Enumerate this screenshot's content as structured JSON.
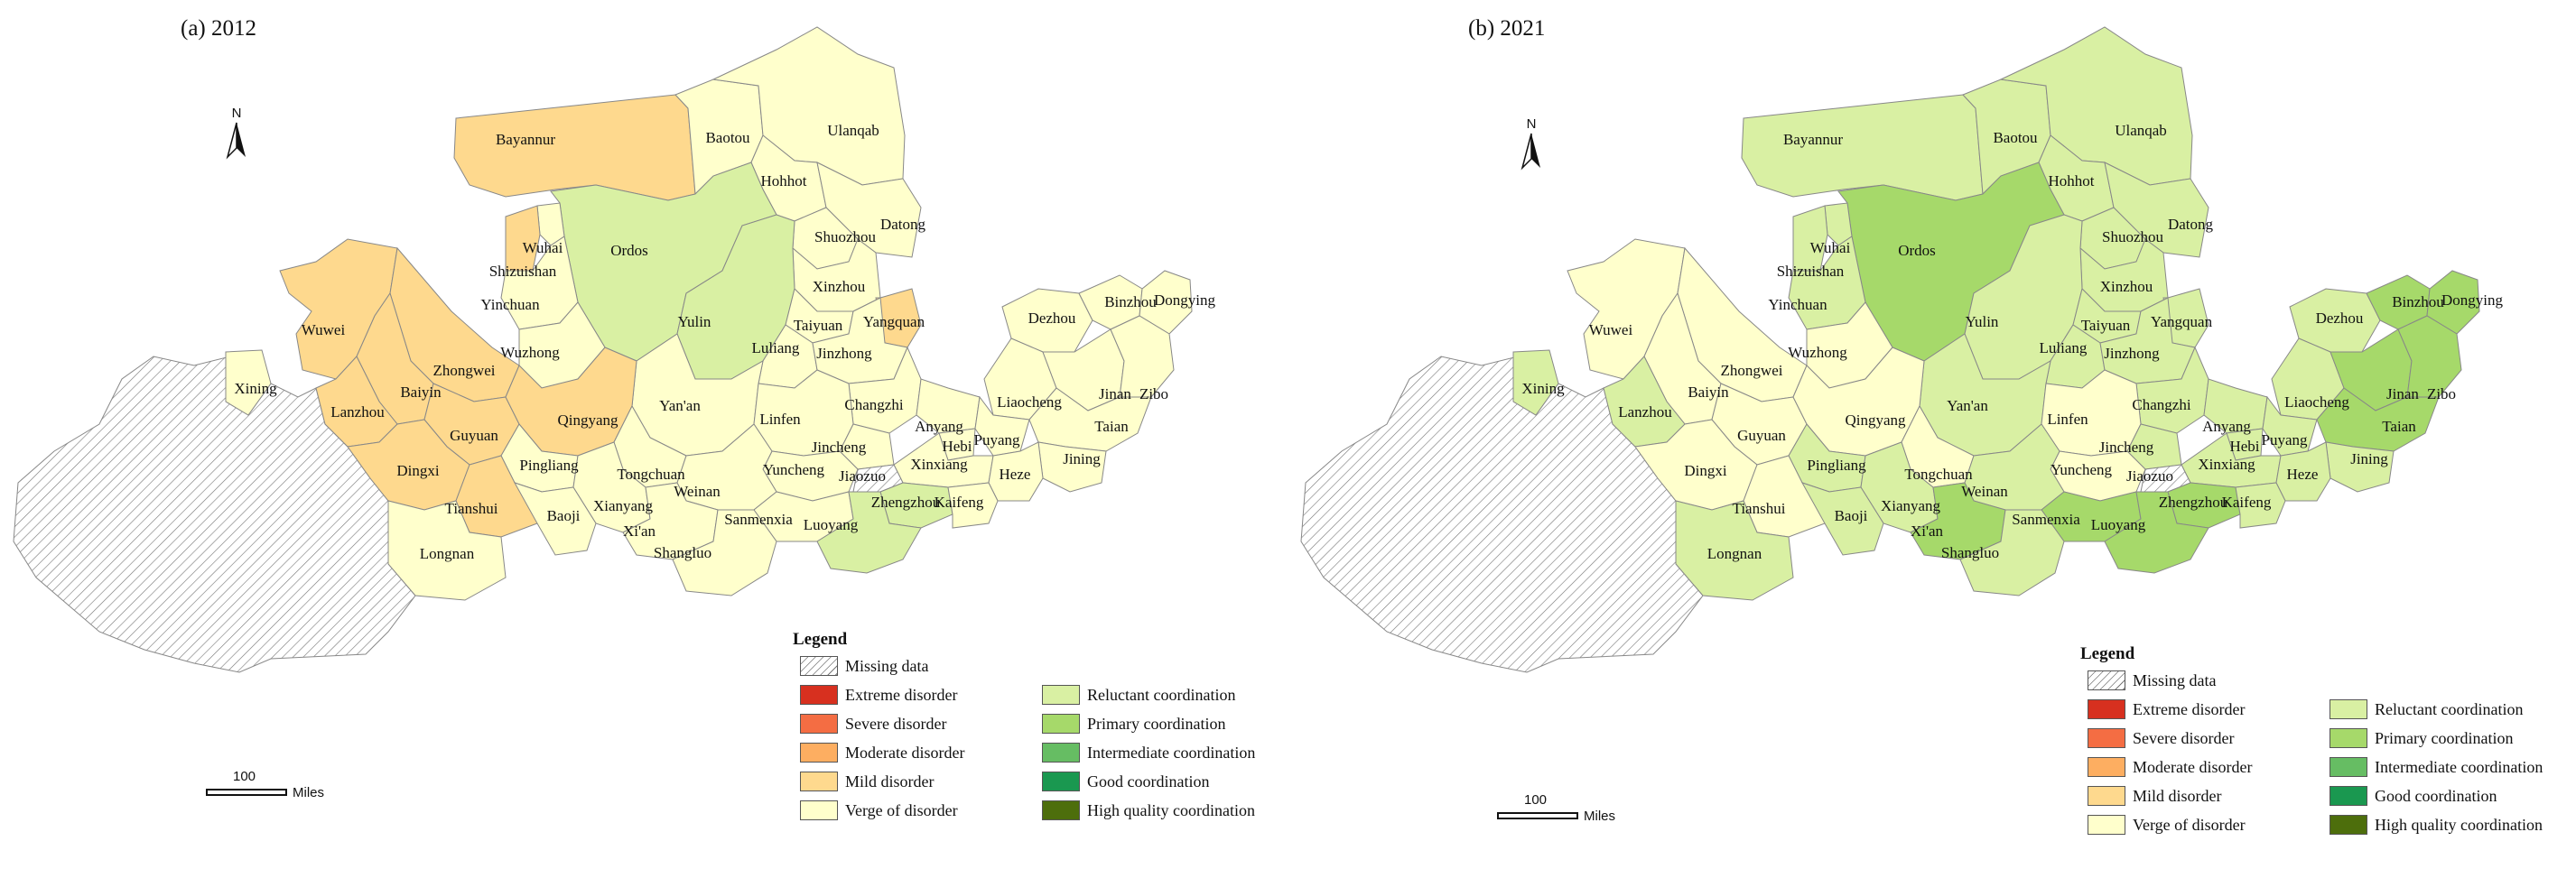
{
  "colors": {
    "missing": "#ffffff",
    "extreme_disorder": "#d7301f",
    "severe_disorder": "#f46d43",
    "moderate_disorder": "#fdae61",
    "mild_disorder": "#fed98e",
    "verge_of_disorder": "#ffffcc",
    "reluctant_coordination": "#d9f0a3",
    "primary_coordination": "#a6d96a",
    "intermediate_coordination": "#66bd63",
    "good_coordination": "#1a9850",
    "high_quality_coordination": "#4d6e0c"
  },
  "legend": {
    "title": "Legend",
    "items": [
      {
        "label": "Missing data",
        "class": "missing"
      },
      {
        "label": "Extreme disorder",
        "class": "extreme_disorder"
      },
      {
        "label": "Severe disorder",
        "class": "severe_disorder"
      },
      {
        "label": "Moderate disorder",
        "class": "moderate_disorder"
      },
      {
        "label": "Mild disorder",
        "class": "mild_disorder"
      },
      {
        "label": "Verge of disorder",
        "class": "verge_of_disorder"
      },
      {
        "label": "Reluctant coordination",
        "class": "reluctant_coordination"
      },
      {
        "label": "Primary coordination",
        "class": "primary_coordination"
      },
      {
        "label": "Intermediate coordination",
        "class": "intermediate_coordination"
      },
      {
        "label": "Good coordination",
        "class": "good_coordination"
      },
      {
        "label": "High quality coordination",
        "class": "high_quality_coordination"
      }
    ]
  },
  "scalebar": {
    "value": "100",
    "unit": "Miles"
  },
  "north_label": "N",
  "cities": [
    "Bayannur",
    "Baotou",
    "Ulanqab",
    "Hohhot",
    "Ordos",
    "Datong",
    "Wuhai",
    "Shizuishan",
    "Shuozhou",
    "Yinchuan",
    "Xinzhou",
    "Yangquan",
    "Wuwei",
    "Yulin",
    "Taiyuan",
    "Luliang",
    "Jinzhong",
    "Wuzhong",
    "Dezhou",
    "Binzhou",
    "Dongying",
    "Zhongwei",
    "Xining",
    "Baiyin",
    "Changzhi",
    "Liaocheng",
    "Jinan",
    "Zibo",
    "Lanzhou",
    "Yan'an",
    "Guyuan",
    "Qingyang",
    "Linfen",
    "Anyang",
    "Hebi",
    "Puyang",
    "Taian",
    "Jincheng",
    "Pingliang",
    "Dingxi",
    "Yuncheng",
    "Xinxiang",
    "Tongchuan",
    "Jiaozuo",
    "Weinan",
    "Jining",
    "Heze",
    "Tianshui",
    "Zhengzhou",
    "Kaifeng",
    "Xianyang",
    "Baoji",
    "Sanmenxia",
    "Luoyang",
    "Xi'an",
    "Longnan",
    "Shangluo"
  ],
  "panels": [
    {
      "title": "(a) 2012",
      "levels": {
        "Bayannur": "mild_disorder",
        "Baotou": "verge_of_disorder",
        "Ulanqab": "verge_of_disorder",
        "Hohhot": "verge_of_disorder",
        "Ordos": "reluctant_coordination",
        "Datong": "verge_of_disorder",
        "Wuhai": "verge_of_disorder",
        "Shizuishan": "mild_disorder",
        "Shuozhou": "verge_of_disorder",
        "Yinchuan": "verge_of_disorder",
        "Xinzhou": "verge_of_disorder",
        "Yangquan": "mild_disorder",
        "Wuwei": "mild_disorder",
        "Yulin": "reluctant_coordination",
        "Taiyuan": "verge_of_disorder",
        "Luliang": "verge_of_disorder",
        "Jinzhong": "verge_of_disorder",
        "Wuzhong": "verge_of_disorder",
        "Dezhou": "verge_of_disorder",
        "Binzhou": "verge_of_disorder",
        "Dongying": "verge_of_disorder",
        "Zhongwei": "mild_disorder",
        "Xining": "verge_of_disorder",
        "Baiyin": "mild_disorder",
        "Changzhi": "verge_of_disorder",
        "Liaocheng": "verge_of_disorder",
        "Jinan": "verge_of_disorder",
        "Zibo": "verge_of_disorder",
        "Lanzhou": "mild_disorder",
        "Yan'an": "verge_of_disorder",
        "Guyuan": "mild_disorder",
        "Qingyang": "mild_disorder",
        "Linfen": "verge_of_disorder",
        "Anyang": "verge_of_disorder",
        "Hebi": "verge_of_disorder",
        "Puyang": "verge_of_disorder",
        "Taian": "verge_of_disorder",
        "Jincheng": "verge_of_disorder",
        "Pingliang": "verge_of_disorder",
        "Dingxi": "mild_disorder",
        "Yuncheng": "verge_of_disorder",
        "Xinxiang": "verge_of_disorder",
        "Tongchuan": "verge_of_disorder",
        "Jiaozuo": "missing",
        "Weinan": "verge_of_disorder",
        "Jining": "verge_of_disorder",
        "Heze": "verge_of_disorder",
        "Tianshui": "mild_disorder",
        "Zhengzhou": "reluctant_coordination",
        "Kaifeng": "verge_of_disorder",
        "Xianyang": "verge_of_disorder",
        "Baoji": "verge_of_disorder",
        "Sanmenxia": "verge_of_disorder",
        "Luoyang": "reluctant_coordination",
        "Xi'an": "verge_of_disorder",
        "Longnan": "verge_of_disorder",
        "Shangluo": "verge_of_disorder"
      }
    },
    {
      "title": "(b) 2021",
      "levels": {
        "Bayannur": "reluctant_coordination",
        "Baotou": "reluctant_coordination",
        "Ulanqab": "reluctant_coordination",
        "Hohhot": "reluctant_coordination",
        "Ordos": "primary_coordination",
        "Datong": "reluctant_coordination",
        "Wuhai": "reluctant_coordination",
        "Shizuishan": "reluctant_coordination",
        "Shuozhou": "reluctant_coordination",
        "Yinchuan": "reluctant_coordination",
        "Xinzhou": "reluctant_coordination",
        "Yangquan": "reluctant_coordination",
        "Wuwei": "verge_of_disorder",
        "Yulin": "reluctant_coordination",
        "Taiyuan": "reluctant_coordination",
        "Luliang": "reluctant_coordination",
        "Jinzhong": "reluctant_coordination",
        "Wuzhong": "verge_of_disorder",
        "Dezhou": "reluctant_coordination",
        "Binzhou": "primary_coordination",
        "Dongying": "primary_coordination",
        "Zhongwei": "verge_of_disorder",
        "Xining": "reluctant_coordination",
        "Baiyin": "verge_of_disorder",
        "Changzhi": "reluctant_coordination",
        "Liaocheng": "reluctant_coordination",
        "Jinan": "primary_coordination",
        "Zibo": "primary_coordination",
        "Lanzhou": "reluctant_coordination",
        "Yan'an": "reluctant_coordination",
        "Guyuan": "verge_of_disorder",
        "Qingyang": "verge_of_disorder",
        "Linfen": "verge_of_disorder",
        "Anyang": "reluctant_coordination",
        "Hebi": "reluctant_coordination",
        "Puyang": "reluctant_coordination",
        "Taian": "primary_coordination",
        "Jincheng": "reluctant_coordination",
        "Pingliang": "reluctant_coordination",
        "Dingxi": "verge_of_disorder",
        "Yuncheng": "verge_of_disorder",
        "Xinxiang": "reluctant_coordination",
        "Tongchuan": "verge_of_disorder",
        "Jiaozuo": "missing",
        "Weinan": "reluctant_coordination",
        "Jining": "reluctant_coordination",
        "Heze": "reluctant_coordination",
        "Tianshui": "verge_of_disorder",
        "Zhengzhou": "primary_coordination",
        "Kaifeng": "reluctant_coordination",
        "Xianyang": "reluctant_coordination",
        "Baoji": "reluctant_coordination",
        "Sanmenxia": "primary_coordination",
        "Luoyang": "primary_coordination",
        "Xi'an": "primary_coordination",
        "Longnan": "reluctant_coordination",
        "Shangluo": "reluctant_coordination"
      }
    }
  ]
}
